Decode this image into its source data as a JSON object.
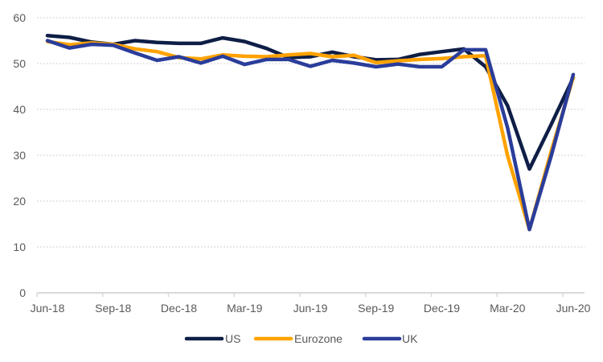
{
  "chart_data": {
    "type": "line",
    "title": "",
    "xlabel": "",
    "ylabel": "",
    "ylim": [
      0,
      60
    ],
    "yticks": [
      0,
      10,
      20,
      30,
      40,
      50,
      60
    ],
    "grid": true,
    "legend_position": "bottom",
    "x": [
      "Jun-18",
      "Jul-18",
      "Aug-18",
      "Sep-18",
      "Oct-18",
      "Nov-18",
      "Dec-18",
      "Jan-19",
      "Feb-19",
      "Mar-19",
      "Apr-19",
      "May-19",
      "Jun-19",
      "Jul-19",
      "Aug-19",
      "Sep-19",
      "Oct-19",
      "Nov-19",
      "Dec-19",
      "Jan-20",
      "Feb-20",
      "Mar-20",
      "Apr-20",
      "May-20",
      "Jun-20"
    ],
    "xtick_labels": [
      "Jun-18",
      "Sep-18",
      "Dec-18",
      "Mar-19",
      "Jun-19",
      "Sep-19",
      "Dec-19",
      "Mar-20",
      "Jun-20"
    ],
    "series": [
      {
        "name": "US",
        "color": "#0e1e46",
        "values": [
          56.1,
          55.7,
          54.7,
          54.2,
          55.0,
          54.6,
          54.4,
          54.4,
          55.6,
          54.8,
          53.3,
          51.3,
          51.5,
          52.5,
          51.5,
          50.8,
          50.9,
          52.0,
          52.6,
          53.2,
          49.3,
          40.8,
          27.0,
          36.8,
          46.9
        ]
      },
      {
        "name": "Eurozone",
        "color": "#ffa200",
        "values": [
          54.8,
          54.1,
          54.5,
          54.2,
          53.2,
          52.6,
          51.3,
          51.0,
          51.9,
          51.6,
          51.5,
          51.9,
          52.2,
          51.5,
          51.8,
          50.2,
          50.6,
          50.9,
          51.1,
          51.5,
          51.7,
          29.9,
          13.8,
          31.0,
          47.0
        ]
      },
      {
        "name": "UK",
        "color": "#2a3d9a",
        "values": [
          55.0,
          53.4,
          54.2,
          54.0,
          52.3,
          50.7,
          51.5,
          50.1,
          51.6,
          49.8,
          50.9,
          50.9,
          49.4,
          50.7,
          50.1,
          49.3,
          49.9,
          49.3,
          49.3,
          53.0,
          53.0,
          36.0,
          13.8,
          30.0,
          47.6
        ]
      }
    ]
  }
}
